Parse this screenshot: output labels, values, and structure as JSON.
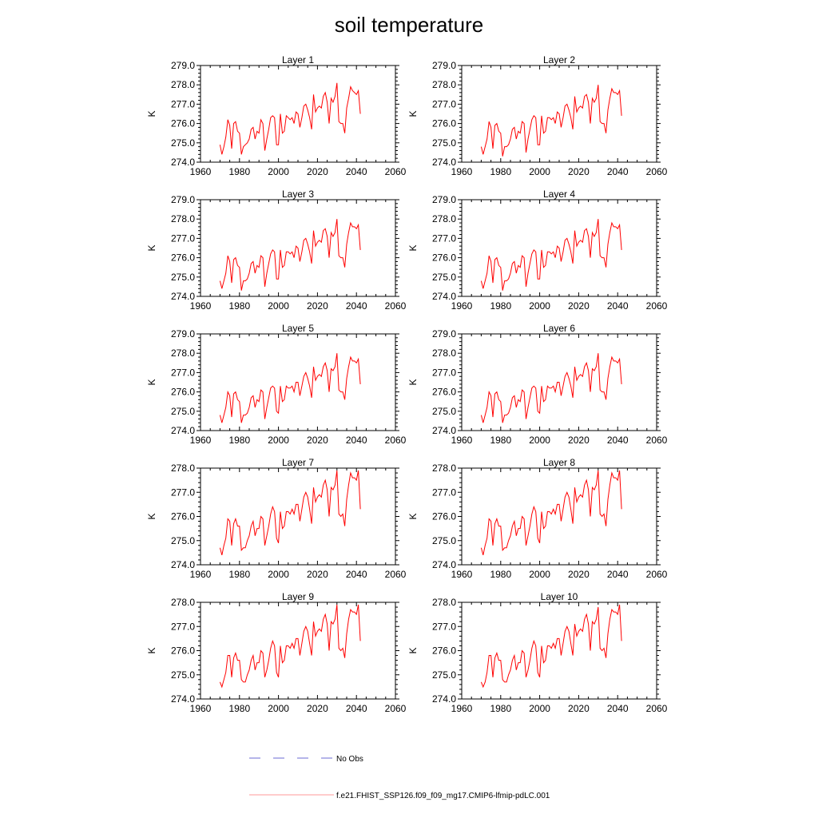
{
  "chart_data": {
    "type": "line",
    "title": "soil temperature",
    "legend": {
      "placement": "bottom",
      "entries": [
        {
          "label": "No Obs",
          "color": "#6b6bd6",
          "style": "dashed"
        },
        {
          "label": "f.e21.FHIST_SSP126.f09_f09_mg17.CMIP6-lfmip-pdLC.001",
          "color": "#ff0000",
          "style": "solid"
        }
      ]
    },
    "series_color": "#ff0000",
    "x_start": 1970,
    "panels": [
      {
        "title": "Layer 1",
        "ylabel": "K",
        "xlim": [
          1960,
          2060
        ],
        "ylim": [
          274,
          279
        ],
        "xticks": [
          "1960",
          "1980",
          "2000",
          "2020",
          "2040",
          "2060"
        ],
        "yticks": [
          "274.0",
          "275.0",
          "276.0",
          "277.0",
          "278.0",
          "279.0"
        ],
        "values": [
          274.9,
          274.4,
          274.8,
          275.3,
          276.2,
          275.9,
          274.7,
          276.0,
          276.1,
          275.6,
          275.5,
          274.4,
          274.8,
          274.9,
          275.0,
          275.2,
          275.7,
          275.8,
          275.2,
          275.6,
          275.5,
          276.2,
          276.0,
          274.6,
          275.2,
          275.7,
          276.3,
          276.4,
          276.3,
          274.9,
          274.9,
          276.5,
          275.5,
          275.6,
          276.4,
          276.3,
          276.2,
          276.3,
          276.0,
          276.6,
          276.5,
          275.8,
          276.3,
          276.9,
          277.0,
          276.7,
          276.3,
          275.7,
          277.5,
          276.6,
          276.8,
          276.9,
          276.8,
          277.4,
          277.6,
          277.1,
          276.0,
          277.3,
          277.1,
          277.4,
          278.1,
          276.1,
          276.0,
          276.0,
          275.5,
          276.8,
          277.3,
          277.9,
          277.7,
          277.6,
          277.5,
          277.7,
          276.5
        ]
      },
      {
        "title": "Layer 2",
        "ylabel": "K",
        "xlim": [
          1960,
          2060
        ],
        "ylim": [
          274,
          279
        ],
        "xticks": [
          "1960",
          "1980",
          "2000",
          "2020",
          "2040",
          "2060"
        ],
        "yticks": [
          "274.0",
          "275.0",
          "276.0",
          "277.0",
          "278.0",
          "279.0"
        ],
        "values": [
          274.8,
          274.4,
          274.8,
          275.2,
          276.1,
          275.8,
          274.7,
          275.9,
          276.0,
          275.6,
          275.5,
          274.3,
          274.8,
          274.8,
          274.9,
          275.2,
          275.7,
          275.8,
          275.2,
          275.6,
          275.5,
          276.1,
          276.0,
          274.5,
          275.2,
          275.7,
          276.2,
          276.4,
          276.3,
          274.9,
          274.9,
          276.4,
          275.5,
          275.6,
          276.3,
          276.3,
          276.2,
          276.3,
          276.0,
          276.6,
          276.5,
          275.8,
          276.3,
          276.9,
          277.0,
          276.7,
          276.3,
          275.7,
          277.4,
          276.6,
          276.8,
          276.9,
          276.8,
          277.4,
          277.5,
          277.1,
          276.0,
          277.3,
          277.1,
          277.3,
          278.0,
          276.1,
          276.0,
          276.0,
          275.5,
          276.7,
          277.3,
          277.8,
          277.6,
          277.6,
          277.5,
          277.7,
          276.4
        ]
      },
      {
        "title": "Layer 3",
        "ylabel": "K",
        "xlim": [
          1960,
          2060
        ],
        "ylim": [
          274,
          279
        ],
        "xticks": [
          "1960",
          "1980",
          "2000",
          "2020",
          "2040",
          "2060"
        ],
        "yticks": [
          "274.0",
          "275.0",
          "276.0",
          "277.0",
          "278.0",
          "279.0"
        ],
        "values": [
          274.8,
          274.4,
          274.8,
          275.2,
          276.1,
          275.8,
          274.7,
          275.9,
          276.0,
          275.6,
          275.5,
          274.3,
          274.8,
          274.8,
          274.9,
          275.2,
          275.7,
          275.8,
          275.2,
          275.6,
          275.5,
          276.1,
          276.0,
          274.5,
          275.2,
          275.7,
          276.2,
          276.4,
          276.3,
          274.9,
          274.9,
          276.4,
          275.5,
          275.6,
          276.3,
          276.3,
          276.2,
          276.3,
          276.0,
          276.6,
          276.5,
          275.8,
          276.3,
          276.9,
          277.0,
          276.7,
          276.3,
          275.7,
          277.4,
          276.6,
          276.8,
          276.9,
          276.8,
          277.4,
          277.5,
          277.1,
          276.0,
          277.3,
          277.1,
          277.3,
          278.0,
          276.1,
          276.0,
          276.0,
          275.5,
          276.7,
          277.3,
          277.8,
          277.6,
          277.6,
          277.5,
          277.7,
          276.4
        ]
      },
      {
        "title": "Layer 4",
        "ylabel": "K",
        "xlim": [
          1960,
          2060
        ],
        "ylim": [
          274,
          279
        ],
        "xticks": [
          "1960",
          "1980",
          "2000",
          "2020",
          "2040",
          "2060"
        ],
        "yticks": [
          "274.0",
          "275.0",
          "276.0",
          "277.0",
          "278.0",
          "279.0"
        ],
        "values": [
          274.8,
          274.4,
          274.8,
          275.2,
          276.1,
          275.8,
          274.7,
          275.9,
          276.0,
          275.6,
          275.5,
          274.3,
          274.8,
          274.8,
          274.9,
          275.2,
          275.7,
          275.8,
          275.2,
          275.6,
          275.5,
          276.1,
          276.0,
          274.5,
          275.2,
          275.7,
          276.2,
          276.4,
          276.3,
          274.9,
          274.9,
          276.4,
          275.5,
          275.6,
          276.3,
          276.3,
          276.2,
          276.3,
          276.0,
          276.6,
          276.5,
          275.8,
          276.3,
          276.9,
          277.0,
          276.7,
          276.3,
          275.7,
          277.4,
          276.6,
          276.8,
          276.9,
          276.8,
          277.4,
          277.5,
          277.1,
          276.0,
          277.3,
          277.1,
          277.3,
          278.0,
          276.1,
          276.0,
          276.0,
          275.5,
          276.7,
          277.3,
          277.8,
          277.6,
          277.6,
          277.5,
          277.7,
          276.4
        ]
      },
      {
        "title": "Layer 5",
        "ylabel": "K",
        "xlim": [
          1960,
          2060
        ],
        "ylim": [
          274,
          279
        ],
        "xticks": [
          "1960",
          "1980",
          "2000",
          "2020",
          "2040",
          "2060"
        ],
        "yticks": [
          "274.0",
          "275.0",
          "276.0",
          "277.0",
          "278.0",
          "279.0"
        ],
        "values": [
          274.8,
          274.4,
          274.8,
          275.2,
          276.0,
          275.8,
          274.7,
          275.9,
          276.0,
          275.6,
          275.5,
          274.4,
          274.8,
          274.8,
          274.9,
          275.2,
          275.7,
          275.8,
          275.2,
          275.6,
          275.5,
          276.1,
          276.0,
          274.6,
          275.2,
          275.7,
          276.2,
          276.3,
          276.2,
          275.0,
          274.9,
          276.3,
          275.5,
          275.6,
          276.3,
          276.2,
          276.2,
          276.3,
          276.0,
          276.5,
          276.5,
          275.8,
          276.3,
          276.8,
          277.0,
          276.7,
          276.3,
          275.7,
          277.3,
          276.6,
          276.8,
          276.9,
          276.8,
          277.3,
          277.5,
          277.1,
          276.0,
          277.2,
          277.1,
          277.3,
          278.0,
          276.1,
          276.0,
          276.0,
          275.6,
          276.7,
          277.3,
          277.8,
          277.6,
          277.6,
          277.5,
          277.7,
          276.4
        ]
      },
      {
        "title": "Layer 6",
        "ylabel": "K",
        "xlim": [
          1960,
          2060
        ],
        "ylim": [
          274,
          279
        ],
        "xticks": [
          "1960",
          "1980",
          "2000",
          "2020",
          "2040",
          "2060"
        ],
        "yticks": [
          "274.0",
          "275.0",
          "276.0",
          "277.0",
          "278.0",
          "279.0"
        ],
        "values": [
          274.8,
          274.4,
          274.8,
          275.2,
          276.0,
          275.8,
          274.7,
          275.9,
          276.0,
          275.6,
          275.5,
          274.4,
          274.8,
          274.8,
          274.9,
          275.2,
          275.7,
          275.8,
          275.2,
          275.6,
          275.5,
          276.1,
          276.0,
          274.6,
          275.2,
          275.7,
          276.2,
          276.3,
          276.2,
          275.0,
          274.9,
          276.3,
          275.5,
          275.6,
          276.3,
          276.2,
          276.2,
          276.3,
          276.0,
          276.5,
          276.5,
          275.8,
          276.3,
          276.8,
          277.0,
          276.7,
          276.3,
          275.7,
          277.3,
          276.6,
          276.8,
          276.9,
          276.8,
          277.3,
          277.5,
          277.1,
          276.0,
          277.2,
          277.1,
          277.3,
          278.0,
          276.1,
          276.0,
          276.0,
          275.6,
          276.7,
          277.3,
          277.8,
          277.6,
          277.6,
          277.5,
          277.7,
          276.4
        ]
      },
      {
        "title": "Layer 7",
        "ylabel": "K",
        "xlim": [
          1960,
          2060
        ],
        "ylim": [
          274,
          278
        ],
        "xticks": [
          "1960",
          "1980",
          "2000",
          "2020",
          "2040",
          "2060"
        ],
        "yticks": [
          "274.0",
          "275.0",
          "276.0",
          "277.0",
          "278.0"
        ],
        "values": [
          274.7,
          274.4,
          274.8,
          275.1,
          275.9,
          275.8,
          274.8,
          275.7,
          275.9,
          275.6,
          275.6,
          274.6,
          274.7,
          274.7,
          275.0,
          275.2,
          275.6,
          275.8,
          275.2,
          275.5,
          275.5,
          276.0,
          275.9,
          274.8,
          275.2,
          275.6,
          276.1,
          276.4,
          276.2,
          275.1,
          274.9,
          276.2,
          275.5,
          275.6,
          276.2,
          276.2,
          276.1,
          276.3,
          276.1,
          276.5,
          276.5,
          275.8,
          276.3,
          276.8,
          277.0,
          276.8,
          276.3,
          275.7,
          277.2,
          276.6,
          276.8,
          276.9,
          276.8,
          277.3,
          277.5,
          277.1,
          276.0,
          277.2,
          277.1,
          277.3,
          277.9,
          276.1,
          276.0,
          276.1,
          275.6,
          276.7,
          277.3,
          277.8,
          277.6,
          277.6,
          277.5,
          277.9,
          276.3
        ]
      },
      {
        "title": "Layer 8",
        "ylabel": "K",
        "xlim": [
          1960,
          2060
        ],
        "ylim": [
          274,
          278
        ],
        "xticks": [
          "1960",
          "1980",
          "2000",
          "2020",
          "2040",
          "2060"
        ],
        "yticks": [
          "274.0",
          "275.0",
          "276.0",
          "277.0",
          "278.0"
        ],
        "values": [
          274.7,
          274.4,
          274.8,
          275.1,
          275.9,
          275.8,
          274.8,
          275.7,
          275.9,
          275.6,
          275.6,
          274.6,
          274.7,
          274.7,
          275.0,
          275.2,
          275.6,
          275.8,
          275.2,
          275.5,
          275.5,
          276.0,
          275.9,
          274.8,
          275.2,
          275.6,
          276.1,
          276.4,
          276.2,
          275.1,
          274.9,
          276.2,
          275.5,
          275.6,
          276.2,
          276.2,
          276.1,
          276.3,
          276.1,
          276.5,
          276.5,
          275.8,
          276.3,
          276.8,
          277.0,
          276.8,
          276.3,
          275.7,
          277.2,
          276.6,
          276.8,
          276.9,
          276.8,
          277.3,
          277.5,
          277.1,
          276.0,
          277.2,
          277.1,
          277.3,
          277.9,
          276.1,
          276.0,
          276.1,
          275.6,
          276.7,
          277.3,
          277.8,
          277.6,
          277.6,
          277.5,
          277.9,
          276.3
        ]
      },
      {
        "title": "Layer 9",
        "ylabel": "K",
        "xlim": [
          1960,
          2060
        ],
        "ylim": [
          274,
          278
        ],
        "xticks": [
          "1960",
          "1980",
          "2000",
          "2020",
          "2040",
          "2060"
        ],
        "yticks": [
          "274.0",
          "275.0",
          "276.0",
          "277.0",
          "278.0"
        ],
        "values": [
          274.7,
          274.5,
          274.8,
          275.1,
          275.8,
          275.8,
          274.9,
          275.7,
          275.9,
          275.6,
          275.6,
          274.8,
          274.7,
          274.7,
          275.0,
          275.2,
          275.6,
          275.8,
          275.2,
          275.5,
          275.5,
          276.0,
          275.9,
          274.9,
          275.2,
          275.6,
          276.1,
          276.4,
          276.2,
          275.1,
          274.9,
          276.2,
          275.5,
          275.6,
          276.2,
          276.2,
          276.1,
          276.3,
          276.1,
          276.5,
          276.5,
          275.8,
          276.3,
          276.8,
          277.0,
          276.8,
          276.3,
          275.8,
          277.2,
          276.6,
          276.8,
          276.9,
          276.8,
          277.3,
          277.5,
          277.1,
          276.0,
          277.2,
          277.1,
          277.3,
          277.9,
          276.1,
          276.0,
          276.1,
          275.7,
          276.7,
          277.3,
          277.7,
          277.6,
          277.6,
          277.5,
          277.9,
          276.4
        ]
      },
      {
        "title": "Layer 10",
        "ylabel": "K",
        "xlim": [
          1960,
          2060
        ],
        "ylim": [
          274,
          278
        ],
        "xticks": [
          "1960",
          "1980",
          "2000",
          "2020",
          "2040",
          "2060"
        ],
        "yticks": [
          "274.0",
          "275.0",
          "276.0",
          "277.0",
          "278.0"
        ],
        "values": [
          274.7,
          274.5,
          274.7,
          275.1,
          275.8,
          275.8,
          274.9,
          275.7,
          275.9,
          275.6,
          275.6,
          274.8,
          274.7,
          274.7,
          275.0,
          275.2,
          275.6,
          275.8,
          275.2,
          275.5,
          275.5,
          276.0,
          275.9,
          274.9,
          275.2,
          275.6,
          276.1,
          276.4,
          276.2,
          275.1,
          274.9,
          276.2,
          275.5,
          275.6,
          276.2,
          276.2,
          276.1,
          276.3,
          276.1,
          276.5,
          276.5,
          275.8,
          276.3,
          276.8,
          277.0,
          276.8,
          276.3,
          275.8,
          277.1,
          276.6,
          276.8,
          276.9,
          276.8,
          277.3,
          277.5,
          277.1,
          276.0,
          277.2,
          277.1,
          277.3,
          277.8,
          276.1,
          276.0,
          276.1,
          275.7,
          276.7,
          277.3,
          277.7,
          277.6,
          277.6,
          277.5,
          277.9,
          276.4
        ]
      }
    ]
  }
}
